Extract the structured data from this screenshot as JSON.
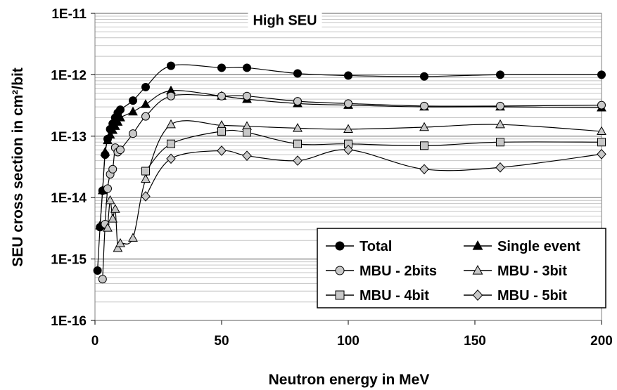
{
  "chart_data": {
    "type": "scatter",
    "title": "",
    "xlabel": "Neutron energy in MeV",
    "ylabel": "SEU cross section in cm²/bit",
    "xlim": [
      0,
      200
    ],
    "ylim": [
      1e-16,
      1e-11
    ],
    "yscale": "log",
    "x_ticks": [
      0,
      50,
      100,
      150,
      200
    ],
    "x_tick_labels": [
      "0",
      "50",
      "100",
      "150",
      "200"
    ],
    "y_ticks": [
      1e-11,
      1e-12,
      1e-13,
      1e-14,
      1e-15,
      1e-16
    ],
    "y_tick_labels": [
      "1E-11",
      "1E-12",
      "1E-13",
      "1E-14",
      "1E-15",
      "1E-16"
    ],
    "grid": "horizontal major and minor",
    "legend_position": "bottom-right",
    "annotations": [
      {
        "text": "High SEU",
        "x": 75,
        "y": 6.5e-12
      }
    ],
    "series": [
      {
        "name": "Total",
        "marker": "circle",
        "fill": "#000000",
        "x": [
          1,
          2,
          3,
          4,
          5,
          6,
          7,
          8,
          9,
          10,
          15,
          20,
          30,
          50,
          60,
          80,
          100,
          130,
          160,
          200
        ],
        "y": [
          6.5e-16,
          3.3e-15,
          1.3e-14,
          5e-14,
          9e-14,
          1.3e-13,
          1.6e-13,
          2e-13,
          2.4e-13,
          2.7e-13,
          3.8e-13,
          6.3e-13,
          1.4e-12,
          1.3e-12,
          1.3e-12,
          1.05e-12,
          9.7e-13,
          9.4e-13,
          1e-12,
          1e-12
        ]
      },
      {
        "name": "Single event",
        "marker": "triangle",
        "fill": "#000000",
        "x": [
          2,
          3,
          4,
          5,
          6,
          7,
          8,
          9,
          10,
          15,
          20,
          30,
          50,
          60,
          80,
          100,
          130,
          160,
          200
        ],
        "y": [
          3.5e-15,
          1.3e-14,
          5.5e-14,
          8.5e-14,
          1.05e-13,
          1.25e-13,
          1.45e-13,
          1.7e-13,
          2e-13,
          2.5e-13,
          3.3e-13,
          5.5e-13,
          4.5e-13,
          4e-13,
          3.4e-13,
          3.2e-13,
          3e-13,
          3e-13,
          2.9e-13
        ]
      },
      {
        "name": "MBU - 2bits",
        "marker": "circle",
        "fill": "#c8c8c8",
        "x": [
          3,
          4,
          5,
          6,
          7,
          8,
          9,
          10,
          15,
          20,
          30,
          50,
          60,
          80,
          100,
          130,
          160,
          200
        ],
        "y": [
          4.7e-16,
          3.7e-15,
          1.4e-14,
          2.4e-14,
          2.9e-14,
          6.5e-14,
          5.5e-14,
          6e-14,
          1.1e-13,
          2.1e-13,
          4.5e-13,
          4.5e-13,
          4.5e-13,
          3.7e-13,
          3.4e-13,
          3.1e-13,
          3.1e-13,
          3.2e-13
        ]
      },
      {
        "name": "MBU - 3bit",
        "marker": "triangle",
        "fill": "#c8c8c8",
        "x": [
          5,
          6,
          7,
          8,
          9,
          10,
          15,
          20,
          30,
          50,
          60,
          80,
          100,
          130,
          160,
          200
        ],
        "y": [
          3.2e-15,
          9e-15,
          4.5e-15,
          6.5e-15,
          1.5e-15,
          1.8e-15,
          2.2e-15,
          2e-14,
          1.55e-13,
          1.5e-13,
          1.45e-13,
          1.35e-13,
          1.3e-13,
          1.4e-13,
          1.55e-13,
          1.2e-13
        ]
      },
      {
        "name": "MBU - 4bit",
        "marker": "square",
        "fill": "#c8c8c8",
        "x": [
          20,
          30,
          50,
          60,
          80,
          100,
          130,
          160,
          200
        ],
        "y": [
          2.7e-14,
          7.5e-14,
          1.2e-13,
          1.15e-13,
          7.5e-14,
          7.5e-14,
          7e-14,
          8e-14,
          8e-14
        ]
      },
      {
        "name": "MBU - 5bit",
        "marker": "diamond",
        "fill": "#c8c8c8",
        "x": [
          20,
          30,
          50,
          60,
          80,
          100,
          130,
          160,
          200
        ],
        "y": [
          1.05e-14,
          4.3e-14,
          5.8e-14,
          4.8e-14,
          4e-14,
          6e-14,
          2.9e-14,
          3.1e-14,
          5.1e-14
        ]
      }
    ]
  }
}
